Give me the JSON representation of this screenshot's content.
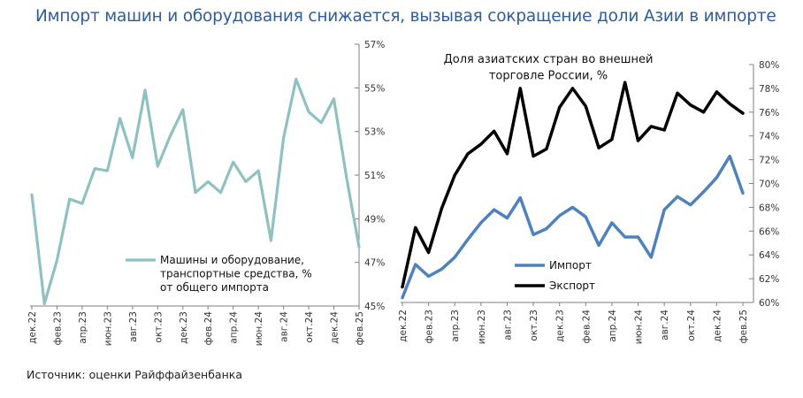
{
  "headline": "Импорт машин и оборудования снижается, вызывая сокращение доли Азии в импорте",
  "source": "Источник: оценки Райффайзенбанка",
  "chart_data": [
    {
      "type": "line",
      "title": "",
      "xlabel": "",
      "ylabel": "",
      "y_axis_side": "right",
      "ylim": [
        45,
        57
      ],
      "yticks": [
        "45%",
        "47%",
        "49%",
        "51%",
        "53%",
        "55%",
        "57%"
      ],
      "ytick_values": [
        45,
        47,
        49,
        51,
        53,
        55,
        57
      ],
      "x": [
        "дек.22",
        "янв.23",
        "фев.23",
        "мар.23",
        "апр.23",
        "май.23",
        "июн.23",
        "июл.23",
        "авг.23",
        "сен.23",
        "окт.23",
        "ноя.23",
        "дек.23",
        "янв.24",
        "фев.24",
        "мар.24",
        "апр.24",
        "май.24",
        "июн.24",
        "июл.24",
        "авг.24",
        "сен.24",
        "окт.24",
        "ноя.24",
        "дек.24",
        "янв.25",
        "фев.25"
      ],
      "xtick_labels": [
        "дек.22",
        "фев.23",
        "апр.23",
        "июн.23",
        "авг.23",
        "окт.23",
        "дек.23",
        "фев.24",
        "апр.24",
        "июн.24",
        "авг.24",
        "окт.24",
        "дек.24",
        "фев.25"
      ],
      "grid": false,
      "legend_position": "bottom-right",
      "series": [
        {
          "name": "Машины и оборудование, транспортные средства, % от общего импорта",
          "legend_lines": [
            "Машины и оборудование,",
            "транспортные средства, %",
            "от общего импорта"
          ],
          "color": "#8FC1C1",
          "values": [
            50.1,
            45.1,
            47.1,
            49.9,
            49.7,
            51.3,
            51.2,
            53.6,
            51.8,
            54.9,
            51.4,
            52.8,
            54.0,
            50.2,
            50.7,
            50.2,
            51.6,
            50.7,
            51.2,
            48.0,
            52.7,
            55.4,
            53.9,
            53.4,
            54.5,
            50.9,
            47.7
          ]
        }
      ]
    },
    {
      "type": "line",
      "title": "Доля азиатских стран во внешней торговле России, %",
      "title_lines": [
        "Доля азиатских стран во внешней",
        "торговле России, %"
      ],
      "xlabel": "",
      "ylabel": "",
      "y_axis_side": "right",
      "ylim": [
        60,
        80
      ],
      "yticks": [
        "60%",
        "62%",
        "64%",
        "66%",
        "68%",
        "70%",
        "72%",
        "74%",
        "76%",
        "78%",
        "80%"
      ],
      "ytick_values": [
        60,
        62,
        64,
        66,
        68,
        70,
        72,
        74,
        76,
        78,
        80
      ],
      "x": [
        "дек.22",
        "янв.23",
        "фев.23",
        "мар.23",
        "апр.23",
        "май.23",
        "июн.23",
        "июл.23",
        "авг.23",
        "сен.23",
        "окт.23",
        "ноя.23",
        "дек.23",
        "янв.24",
        "фев.24",
        "мар.24",
        "апр.24",
        "май.24",
        "июн.24",
        "июл.24",
        "авг.24",
        "сен.24",
        "окт.24",
        "ноя.24",
        "дек.24",
        "янв.25",
        "фев.25"
      ],
      "xtick_labels": [
        "дек.22",
        "фев.23",
        "апр.23",
        "июн.23",
        "авг.23",
        "окт.23",
        "дек.23",
        "фев.24",
        "апр.24",
        "июн.24",
        "авг.24",
        "окт.24",
        "дек.24",
        "фев.25"
      ],
      "grid": false,
      "legend_position": "bottom-left",
      "series": [
        {
          "name": "Импорт",
          "color": "#4F81BD",
          "values": [
            60.4,
            63.2,
            62.2,
            62.8,
            63.8,
            65.3,
            66.7,
            67.8,
            67.1,
            68.8,
            65.7,
            66.2,
            67.3,
            68.0,
            67.2,
            64.8,
            66.7,
            65.5,
            65.5,
            63.8,
            67.8,
            68.9,
            68.2,
            69.3,
            70.5,
            72.3,
            69.2
          ]
        },
        {
          "name": "Экспорт",
          "color": "#000000",
          "values": [
            61.3,
            66.3,
            64.2,
            67.9,
            70.7,
            72.5,
            73.3,
            74.4,
            72.5,
            78.0,
            72.3,
            72.9,
            76.4,
            78.0,
            76.5,
            73.0,
            73.7,
            78.5,
            73.6,
            74.8,
            74.5,
            77.6,
            76.6,
            76.0,
            77.7,
            76.7,
            75.9
          ]
        }
      ]
    }
  ]
}
